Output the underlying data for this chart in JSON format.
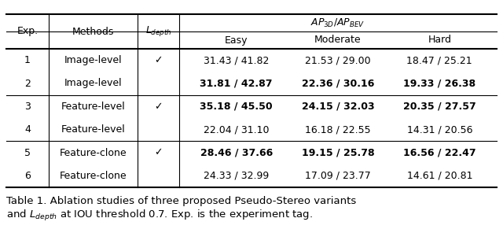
{
  "rows": [
    {
      "exp": "1",
      "method": "Image-level",
      "ldepth": true,
      "easy": "31.43 / 41.82",
      "moderate": "21.53 / 29.00",
      "hard": "18.47 / 25.21",
      "bold": false
    },
    {
      "exp": "2",
      "method": "Image-level",
      "ldepth": false,
      "easy": "31.81 / 42.87",
      "moderate": "22.36 / 30.16",
      "hard": "19.33 / 26.38",
      "bold": true
    },
    {
      "exp": "3",
      "method": "Feature-level",
      "ldepth": true,
      "easy": "35.18 / 45.50",
      "moderate": "24.15 / 32.03",
      "hard": "20.35 / 27.57",
      "bold": true
    },
    {
      "exp": "4",
      "method": "Feature-level",
      "ldepth": false,
      "easy": "22.04 / 31.10",
      "moderate": "16.18 / 22.55",
      "hard": "14.31 / 20.56",
      "bold": false
    },
    {
      "exp": "5",
      "method": "Feature-clone",
      "ldepth": true,
      "easy": "28.46 / 37.66",
      "moderate": "19.15 / 25.78",
      "hard": "16.56 / 22.47",
      "bold": true
    },
    {
      "exp": "6",
      "method": "Feature-clone",
      "ldepth": false,
      "easy": "24.33 / 32.99",
      "moderate": "17.09 / 23.77",
      "hard": "14.61 / 20.81",
      "bold": false
    }
  ],
  "caption_line1": "Table 1. Ablation studies of three proposed Pseudo-Stereo variants",
  "caption_line2": "and $L_{depth}$ at IOU threshold 0.7. Exp. is the experiment tag.",
  "group_separators": [
    2,
    4
  ],
  "background_color": "#ffffff",
  "text_color": "#000000",
  "font_size": 9.0,
  "caption_font_size": 9.5
}
